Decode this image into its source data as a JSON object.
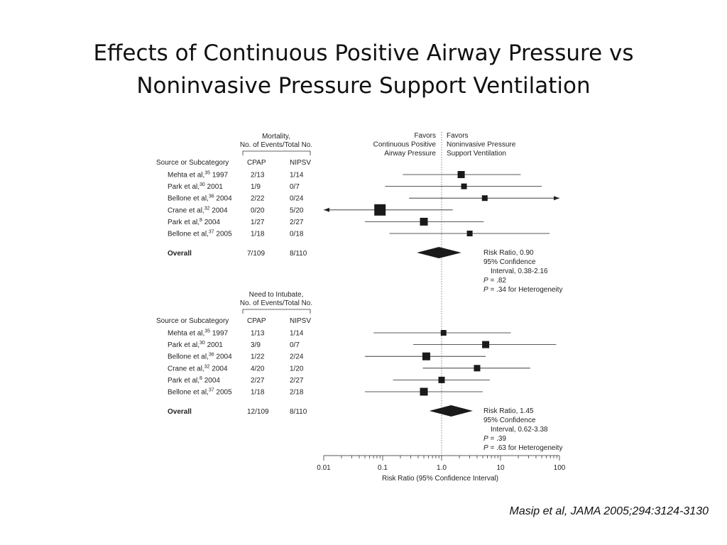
{
  "slide": {
    "title_line1": "Effects of Continuous Positive Airway Pressure vs",
    "title_line2": "Noninvasive Pressure Support Ventilation",
    "citation": "Masip et al, JAMA 2005;294:3124-3130"
  },
  "chart_data": {
    "type": "forest",
    "scale": "log",
    "xlim": [
      0.01,
      100
    ],
    "xticks": [
      0.01,
      0.1,
      1.0,
      10,
      100
    ],
    "xtick_labels": [
      "0.01",
      "0.1",
      "1.0",
      "10",
      "100"
    ],
    "xlabel": "Risk Ratio (95% Confidence Interval)",
    "favors_left": [
      "Favors",
      "Continuous Positive",
      "Airway Pressure"
    ],
    "favors_right": [
      "Favors",
      "Noninvasive Pressure",
      "Support Ventilation"
    ],
    "panels": [
      {
        "header": [
          "Mortality,",
          "No. of Events/Total No."
        ],
        "col_source": "Source or Subcategory",
        "col_a": "CPAP",
        "col_b": "NIPSV",
        "studies": [
          {
            "author": "Mehta et al,",
            "ref": "35",
            "year": "1997",
            "cpap": "2/13",
            "nipsv": "1/14",
            "rr": 2.15,
            "lo": 0.22,
            "hi": 22.0,
            "weight": 10
          },
          {
            "author": "Park et al,",
            "ref": "30",
            "year": "2001",
            "cpap": "1/9",
            "nipsv": "0/7",
            "rr": 2.4,
            "lo": 0.11,
            "hi": 50.0,
            "weight": 8
          },
          {
            "author": "Bellone et al,",
            "ref": "36",
            "year": "2004",
            "cpap": "2/22",
            "nipsv": "0/24",
            "rr": 5.4,
            "lo": 0.28,
            "hi": 100,
            "arrow_right": true,
            "weight": 8
          },
          {
            "author": "Crane et al,",
            "ref": "32",
            "year": "2004",
            "cpap": "0/20",
            "nipsv": "5/20",
            "rr": 0.09,
            "lo": 0.01,
            "hi": 1.55,
            "arrow_left": true,
            "weight": 16
          },
          {
            "author": "Park et al,",
            "ref": "8",
            "year": "2004",
            "cpap": "1/27",
            "nipsv": "2/27",
            "rr": 0.5,
            "lo": 0.05,
            "hi": 5.2,
            "weight": 11
          },
          {
            "author": "Bellone et al,",
            "ref": "37",
            "year": "2005",
            "cpap": "1/18",
            "nipsv": "0/18",
            "rr": 3.0,
            "lo": 0.13,
            "hi": 68.0,
            "weight": 8
          }
        ],
        "overall": {
          "label": "Overall",
          "cpap": "7/109",
          "nipsv": "8/110",
          "rr": 0.9,
          "lo": 0.38,
          "hi": 2.16
        },
        "summary": [
          "Risk Ratio, 0.90",
          "95% Confidence",
          "Interval, 0.38-2.16",
          "P = .82",
          "P = .34 for Heterogeneity"
        ]
      },
      {
        "header": [
          "Need to Intubate,",
          "No. of Events/Total No."
        ],
        "col_source": "Source or Subcategory",
        "col_a": "CPAP",
        "col_b": "NIPSV",
        "studies": [
          {
            "author": "Mehta et al,",
            "ref": "35",
            "year": "1997",
            "cpap": "1/13",
            "nipsv": "1/14",
            "rr": 1.08,
            "lo": 0.07,
            "hi": 15.0,
            "weight": 8
          },
          {
            "author": "Park et al,",
            "ref": "30",
            "year": "2001",
            "cpap": "3/9",
            "nipsv": "0/7",
            "rr": 5.6,
            "lo": 0.33,
            "hi": 88.0,
            "weight": 10
          },
          {
            "author": "Bellone et al,",
            "ref": "36",
            "year": "2004",
            "cpap": "1/22",
            "nipsv": "2/24",
            "rr": 0.55,
            "lo": 0.05,
            "hi": 5.6,
            "weight": 11
          },
          {
            "author": "Crane et al,",
            "ref": "32",
            "year": "2004",
            "cpap": "4/20",
            "nipsv": "1/20",
            "rr": 4.0,
            "lo": 0.48,
            "hi": 32.0,
            "weight": 9
          },
          {
            "author": "Park et al,",
            "ref": "8",
            "year": "2004",
            "cpap": "2/27",
            "nipsv": "2/27",
            "rr": 1.0,
            "lo": 0.15,
            "hi": 6.6,
            "weight": 9
          },
          {
            "author": "Bellone et al,",
            "ref": "37",
            "year": "2005",
            "cpap": "1/18",
            "nipsv": "2/18",
            "rr": 0.5,
            "lo": 0.05,
            "hi": 5.0,
            "weight": 11
          }
        ],
        "overall": {
          "label": "Overall",
          "cpap": "12/109",
          "nipsv": "8/110",
          "rr": 1.45,
          "lo": 0.62,
          "hi": 3.38
        },
        "summary": [
          "Risk Ratio, 1.45",
          "95% Confidence",
          "Interval, 0.62-3.38",
          "P = .39",
          "P = .63 for Heterogeneity"
        ]
      }
    ]
  }
}
